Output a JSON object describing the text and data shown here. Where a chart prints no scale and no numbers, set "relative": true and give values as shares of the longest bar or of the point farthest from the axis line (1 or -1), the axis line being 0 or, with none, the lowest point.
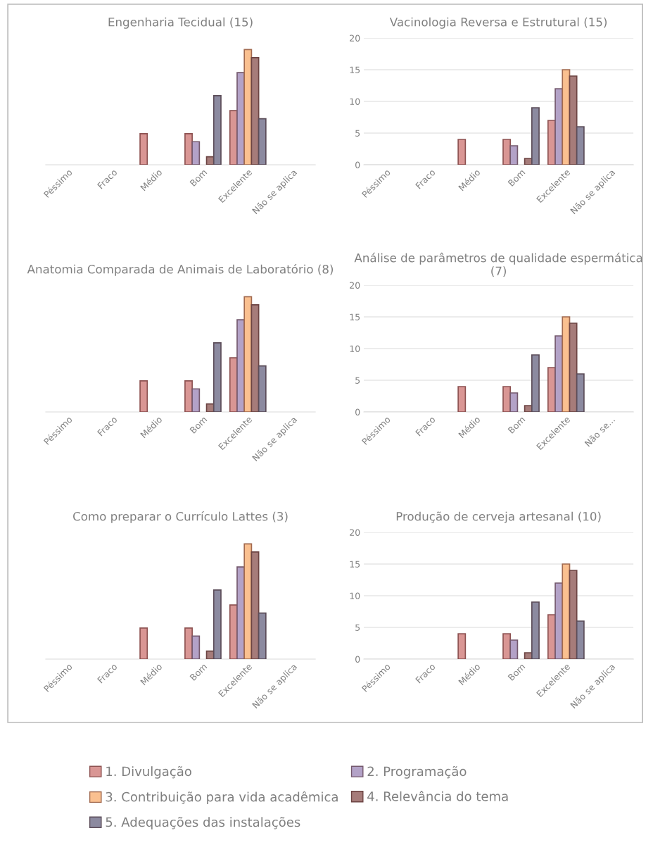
{
  "chart_data": [
    {
      "type": "bar",
      "title": "Engenharia Tecidual (15)",
      "categories": [
        "Péssimo",
        "Fraco",
        "Médio",
        "Bom",
        "Excelente",
        "Não se aplica"
      ],
      "relative": true,
      "tick_labels": "x",
      "legend": "bottom",
      "series": [
        {
          "name": "1. Divulgação",
          "color": "#d99694",
          "values": [
            0,
            0,
            0.27,
            0.27,
            0.47,
            0
          ]
        },
        {
          "name": "2. Programação",
          "color": "#b3a2c7",
          "values": [
            0,
            0,
            0,
            0.2,
            0.8,
            0
          ]
        },
        {
          "name": "3. Contribuição para vida acadêmica",
          "color": "#fac090",
          "values": [
            0,
            0,
            0,
            0,
            1,
            0
          ]
        },
        {
          "name": "4. Relevância do tema",
          "color": "#a67c7a",
          "values": [
            0,
            0,
            0,
            0.07,
            0.93,
            0
          ]
        },
        {
          "name": "5. Adequações das instalações",
          "color": "#8c8aa0",
          "values": [
            0,
            0,
            0,
            0.6,
            0.4,
            0
          ]
        }
      ]
    },
    {
      "type": "bar",
      "title": "Vacinologia Reversa e Estrutural (15)",
      "categories": [
        "Péssimo",
        "Fraco",
        "Médio",
        "Bom",
        "Excelente",
        "Não se aplica"
      ],
      "ylim": [
        0,
        20
      ],
      "yticks": [
        0,
        5,
        10,
        15,
        20
      ],
      "grid": "y",
      "series": [
        {
          "color": "#d99694",
          "values": [
            0,
            0,
            4,
            4,
            7,
            0
          ]
        },
        {
          "color": "#b3a2c7",
          "values": [
            0,
            0,
            0,
            3,
            12,
            0
          ]
        },
        {
          "color": "#fac090",
          "values": [
            0,
            0,
            0,
            0,
            15,
            0
          ]
        },
        {
          "color": "#a67c7a",
          "values": [
            0,
            0,
            0,
            1,
            14,
            0
          ]
        },
        {
          "color": "#8c8aa0",
          "values": [
            0,
            0,
            0,
            9,
            6,
            0
          ]
        }
      ]
    },
    {
      "type": "bar",
      "title": "Anatomia Comparada de Animais de Laboratório (8)",
      "categories": [
        "Péssimo",
        "Fraco",
        "Médio",
        "Bom",
        "Excelente",
        "Não se aplica"
      ],
      "relative": true,
      "tick_labels": "x",
      "series": [
        {
          "color": "#d99694",
          "values": [
            0,
            0,
            0.27,
            0.27,
            0.47,
            0
          ]
        },
        {
          "color": "#b3a2c7",
          "values": [
            0,
            0,
            0,
            0.2,
            0.8,
            0
          ]
        },
        {
          "color": "#fac090",
          "values": [
            0,
            0,
            0,
            0,
            1,
            0
          ]
        },
        {
          "color": "#a67c7a",
          "values": [
            0,
            0,
            0,
            0.07,
            0.93,
            0
          ]
        },
        {
          "color": "#8c8aa0",
          "values": [
            0,
            0,
            0,
            0.6,
            0.4,
            0
          ]
        }
      ]
    },
    {
      "type": "bar",
      "title": "Análise de parâmetros de qualidade espermática (7)",
      "categories": [
        "Péssimo",
        "Fraco",
        "Médio",
        "Bom",
        "Excelente",
        "Não se..."
      ],
      "ylim": [
        0,
        20
      ],
      "yticks": [
        0,
        5,
        10,
        15,
        20
      ],
      "grid": "y",
      "series": [
        {
          "color": "#d99694",
          "values": [
            0,
            0,
            4,
            4,
            7,
            0
          ]
        },
        {
          "color": "#b3a2c7",
          "values": [
            0,
            0,
            0,
            3,
            12,
            0
          ]
        },
        {
          "color": "#fac090",
          "values": [
            0,
            0,
            0,
            0,
            15,
            0
          ]
        },
        {
          "color": "#a67c7a",
          "values": [
            0,
            0,
            0,
            1,
            14,
            0
          ]
        },
        {
          "color": "#8c8aa0",
          "values": [
            0,
            0,
            0,
            9,
            6,
            0
          ]
        }
      ]
    },
    {
      "type": "bar",
      "title": "Como preparar o Currículo Lattes (3)",
      "categories": [
        "Péssimo",
        "Fraco",
        "Médio",
        "Bom",
        "Excelente",
        "Não se aplica"
      ],
      "relative": true,
      "tick_labels": "x",
      "series": [
        {
          "color": "#d99694",
          "values": [
            0,
            0,
            0.27,
            0.27,
            0.47,
            0
          ]
        },
        {
          "color": "#b3a2c7",
          "values": [
            0,
            0,
            0,
            0.2,
            0.8,
            0
          ]
        },
        {
          "color": "#fac090",
          "values": [
            0,
            0,
            0,
            0,
            1,
            0
          ]
        },
        {
          "color": "#a67c7a",
          "values": [
            0,
            0,
            0,
            0.07,
            0.93,
            0
          ]
        },
        {
          "color": "#8c8aa0",
          "values": [
            0,
            0,
            0,
            0.6,
            0.4,
            0
          ]
        }
      ]
    },
    {
      "type": "bar",
      "title": "Produção de cerveja artesanal (10)",
      "categories": [
        "Péssimo",
        "Fraco",
        "Médio",
        "Bom",
        "Excelente",
        "Não se aplica"
      ],
      "ylim": [
        0,
        20
      ],
      "yticks": [
        0,
        5,
        10,
        15,
        20
      ],
      "grid": "y",
      "series": [
        {
          "color": "#d99694",
          "values": [
            0,
            0,
            4,
            4,
            7,
            0
          ]
        },
        {
          "color": "#b3a2c7",
          "values": [
            0,
            0,
            0,
            3,
            12,
            0
          ]
        },
        {
          "color": "#fac090",
          "values": [
            0,
            0,
            0,
            0,
            15,
            0
          ]
        },
        {
          "color": "#a67c7a",
          "values": [
            0,
            0,
            0,
            1,
            14,
            0
          ]
        },
        {
          "color": "#8c8aa0",
          "values": [
            0,
            0,
            0,
            9,
            6,
            0
          ]
        }
      ]
    }
  ]
}
